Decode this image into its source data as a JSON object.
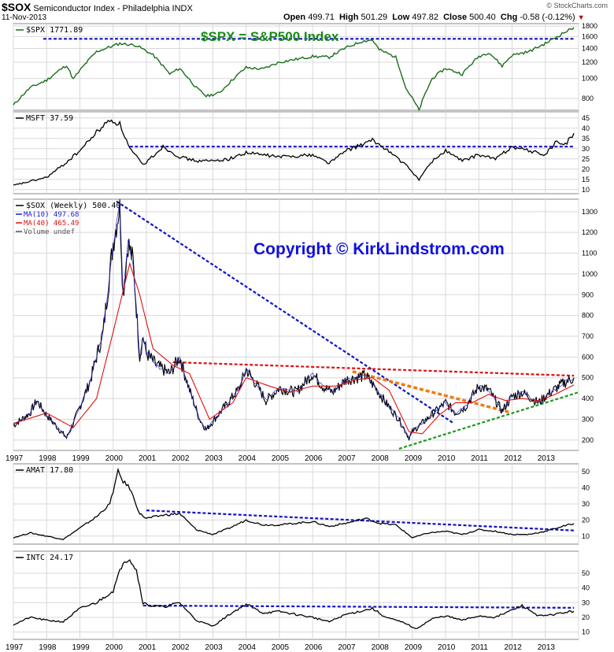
{
  "header": {
    "symbol": "$SOX",
    "name": "Semiconductor Index - Philadelphia INDX",
    "date": "11-Nov-2013",
    "open_label": "Open",
    "open": "499.71",
    "high_label": "High",
    "high": "501.29",
    "low_label": "Low",
    "low": "497.82",
    "close_label": "Close",
    "close": "500.40",
    "chg_label": "Chg",
    "chg": "-0.58 (-0.12%)",
    "brand": "© StockCharts.com"
  },
  "colors": {
    "spx": "#1a6e1a",
    "black": "#000000",
    "ma10": "#1a1acc",
    "ma40": "#e01010",
    "blue_trend": "#1010cc",
    "red_trend": "#e01010",
    "orange_trend": "#f07a14",
    "green_trend": "#1a9a1a",
    "grid": "#d8d8d8"
  },
  "annotations": {
    "spx_note": "$SPX = S&P500 Index",
    "copyright": "Copyright © KirkLindstrom.com"
  },
  "chart_data": [
    {
      "type": "line",
      "title": "$SPX 1771.89",
      "x_ticks": [
        "1997",
        "1998",
        "1999",
        "2000",
        "2001",
        "2002",
        "2003",
        "2004",
        "2005",
        "2006",
        "2007",
        "2008",
        "2009",
        "2010",
        "2011",
        "2012",
        "2013"
      ],
      "y_ticks": [
        800,
        1000,
        1200,
        1400,
        1600,
        1800
      ],
      "ylim": [
        700,
        1850
      ],
      "series": [
        {
          "x": [
            1997.0,
            1997.5,
            1998.0,
            1998.6,
            1998.8,
            1999.5,
            2000.2,
            2000.7,
            2001.2,
            2001.7,
            2002.0,
            2002.5,
            2002.8,
            2003.2,
            2004.0,
            2004.5,
            2005.0,
            2006.0,
            2006.5,
            2007.0,
            2007.5,
            2007.8,
            2008.0,
            2008.5,
            2008.8,
            2009.2,
            2009.6,
            2010.0,
            2010.5,
            2011.0,
            2011.3,
            2011.7,
            2012.0,
            2012.5,
            2013.0,
            2013.5,
            2013.86
          ],
          "values": [
            740,
            900,
            980,
            1160,
            990,
            1350,
            1480,
            1450,
            1300,
            1050,
            1120,
            900,
            820,
            850,
            1130,
            1110,
            1200,
            1280,
            1270,
            1410,
            1520,
            1540,
            1380,
            1270,
            900,
            700,
            1000,
            1120,
            1050,
            1280,
            1340,
            1150,
            1300,
            1350,
            1480,
            1650,
            1771.89
          ]
        }
      ],
      "annotations": [
        {
          "type": "dashed-line",
          "color": "blue",
          "from": [
            1997.9,
            1560
          ],
          "to": [
            2013.86,
            1560
          ]
        }
      ]
    },
    {
      "type": "line",
      "title": "MSFT 37.59",
      "y_ticks": [
        10,
        15,
        20,
        25,
        30,
        35,
        40,
        45
      ],
      "ylim": [
        8,
        48
      ],
      "series": [
        {
          "x": [
            1997.0,
            1997.5,
            1998.0,
            1998.5,
            1999.0,
            1999.5,
            1999.9,
            2000.2,
            2000.5,
            2000.9,
            2001.5,
            2002.0,
            2002.5,
            2003.0,
            2003.5,
            2004.0,
            2005.0,
            2006.0,
            2006.5,
            2007.0,
            2007.8,
            2008.2,
            2008.8,
            2009.2,
            2009.6,
            2010.0,
            2010.5,
            2011.0,
            2011.5,
            2012.0,
            2012.5,
            2013.0,
            2013.3,
            2013.6,
            2013.86
          ],
          "values": [
            12,
            14,
            16,
            22,
            29,
            38,
            44,
            42,
            30,
            22,
            31,
            26,
            24,
            24,
            25,
            28,
            26,
            27,
            23,
            29,
            34,
            30,
            22,
            15,
            24,
            29,
            24,
            27,
            25,
            31,
            29,
            27,
            33,
            32,
            37.59
          ]
        }
      ],
      "annotations": [
        {
          "type": "dashed-line",
          "color": "blue",
          "from": [
            2000.5,
            31
          ],
          "to": [
            2013.86,
            31
          ]
        }
      ]
    },
    {
      "type": "line",
      "title": "$SOX (Weekly) 500.40",
      "legend": [
        "MA(10) 497.68",
        "MA(40) 465.49",
        "Volume undef"
      ],
      "legend_position": "top-left",
      "y_ticks": [
        200,
        300,
        400,
        500,
        600,
        700,
        800,
        900,
        1000,
        1100,
        1200,
        1300
      ],
      "ylim": [
        150,
        1360
      ],
      "series": [
        {
          "name": "$SOX",
          "x": [
            1997.0,
            1997.5,
            1997.7,
            1998.0,
            1998.6,
            1998.8,
            1999.3,
            1999.7,
            2000.0,
            2000.2,
            2000.3,
            2000.45,
            2000.6,
            2000.8,
            2000.9,
            2001.0,
            2001.3,
            2001.7,
            2002.0,
            2002.3,
            2002.6,
            2002.8,
            2003.3,
            2003.8,
            2004.0,
            2004.3,
            2004.6,
            2005.0,
            2005.5,
            2006.0,
            2006.3,
            2006.6,
            2007.0,
            2007.6,
            2007.9,
            2008.2,
            2008.6,
            2008.9,
            2009.0,
            2009.5,
            2010.0,
            2010.3,
            2010.6,
            2011.0,
            2011.3,
            2011.7,
            2012.0,
            2012.3,
            2012.8,
            2013.0,
            2013.5,
            2013.86
          ],
          "values": [
            270,
            330,
            390,
            320,
            210,
            280,
            480,
            720,
            1150,
            1330,
            900,
            1150,
            1060,
            600,
            700,
            620,
            560,
            520,
            600,
            440,
            300,
            250,
            350,
            450,
            540,
            470,
            390,
            450,
            430,
            520,
            460,
            430,
            490,
            510,
            450,
            380,
            300,
            210,
            240,
            310,
            380,
            330,
            360,
            460,
            440,
            340,
            410,
            430,
            380,
            410,
            470,
            500.4
          ]
        },
        {
          "name": "MA(40)",
          "x": [
            1997.0,
            1998.0,
            1998.8,
            1999.5,
            2000.0,
            2000.5,
            2000.8,
            2001.2,
            2001.8,
            2002.3,
            2002.9,
            2003.6,
            2004.0,
            2004.7,
            2005.3,
            2006.0,
            2006.7,
            2007.3,
            2007.8,
            2008.3,
            2008.9,
            2009.3,
            2009.8,
            2010.3,
            2010.8,
            2011.3,
            2011.8,
            2012.3,
            2012.8,
            2013.3,
            2013.86
          ],
          "values": [
            280,
            330,
            260,
            400,
            720,
            1050,
            900,
            640,
            560,
            520,
            300,
            380,
            500,
            460,
            430,
            460,
            460,
            490,
            500,
            440,
            240,
            230,
            320,
            380,
            380,
            420,
            390,
            400,
            390,
            420,
            465.49
          ]
        }
      ],
      "annotations": [
        {
          "type": "dashed-line",
          "color": "blue",
          "from": [
            2000.1,
            1350
          ],
          "to": [
            2010.25,
            280
          ]
        },
        {
          "type": "dashed-line",
          "color": "red",
          "from": [
            2001.8,
            575
          ],
          "to": [
            2013.86,
            510
          ]
        },
        {
          "type": "dashed-line",
          "color": "orange",
          "from": [
            2007.2,
            530
          ],
          "to": [
            2011.9,
            335
          ]
        },
        {
          "type": "dashed-line",
          "color": "green",
          "from": [
            2008.6,
            158
          ],
          "to": [
            2014.0,
            430
          ]
        }
      ]
    },
    {
      "type": "line",
      "title": "AMAT 17.80",
      "y_ticks": [
        10,
        20,
        30,
        40,
        50
      ],
      "ylim": [
        5,
        55
      ],
      "series": [
        {
          "x": [
            1997.0,
            1997.5,
            1998.0,
            1998.5,
            1999.0,
            1999.5,
            1999.9,
            2000.15,
            2000.3,
            2000.5,
            2000.8,
            2001.0,
            2001.5,
            2002.0,
            2002.5,
            2003.0,
            2003.5,
            2004.0,
            2004.5,
            2005.0,
            2006.0,
            2006.5,
            2007.0,
            2007.6,
            2008.0,
            2008.5,
            2009.0,
            2009.5,
            2010.0,
            2010.5,
            2011.0,
            2011.5,
            2012.0,
            2012.5,
            2013.0,
            2013.5,
            2013.86
          ],
          "values": [
            9,
            12,
            10,
            8,
            15,
            22,
            30,
            50,
            44,
            40,
            24,
            21,
            23,
            24,
            14,
            11,
            15,
            20,
            17,
            17,
            19,
            16,
            18,
            21,
            18,
            17,
            9,
            12,
            13,
            11,
            14,
            13,
            11,
            11,
            13,
            16,
            17.8
          ]
        }
      ],
      "annotations": [
        {
          "type": "dashed-line",
          "color": "blue",
          "from": [
            2001.0,
            26
          ],
          "to": [
            2013.86,
            13.5
          ]
        }
      ]
    },
    {
      "type": "line",
      "title": "INTC 24.17",
      "y_ticks": [
        10,
        20,
        30,
        40,
        50
      ],
      "ylim": [
        5,
        65
      ],
      "series": [
        {
          "x": [
            1997.0,
            1997.5,
            1998.0,
            1998.5,
            1999.0,
            1999.5,
            2000.0,
            2000.3,
            2000.5,
            2000.7,
            2000.9,
            2001.1,
            2001.5,
            2002.0,
            2002.5,
            2003.0,
            2003.5,
            2004.0,
            2004.5,
            2005.0,
            2006.0,
            2006.5,
            2007.0,
            2007.8,
            2008.2,
            2008.8,
            2009.1,
            2009.6,
            2010.0,
            2010.5,
            2011.0,
            2011.5,
            2012.0,
            2012.3,
            2012.8,
            2013.0,
            2013.5,
            2013.86
          ],
          "values": [
            15,
            20,
            18,
            17,
            26,
            30,
            38,
            58,
            60,
            52,
            30,
            28,
            27,
            30,
            18,
            14,
            22,
            29,
            23,
            24,
            20,
            17,
            22,
            26,
            20,
            16,
            12,
            19,
            21,
            18,
            21,
            20,
            25,
            28,
            21,
            21,
            23,
            24.17
          ]
        }
      ],
      "annotations": [
        {
          "type": "dashed-line",
          "color": "blue",
          "from": [
            2000.9,
            28
          ],
          "to": [
            2013.86,
            26.5
          ]
        }
      ]
    }
  ]
}
